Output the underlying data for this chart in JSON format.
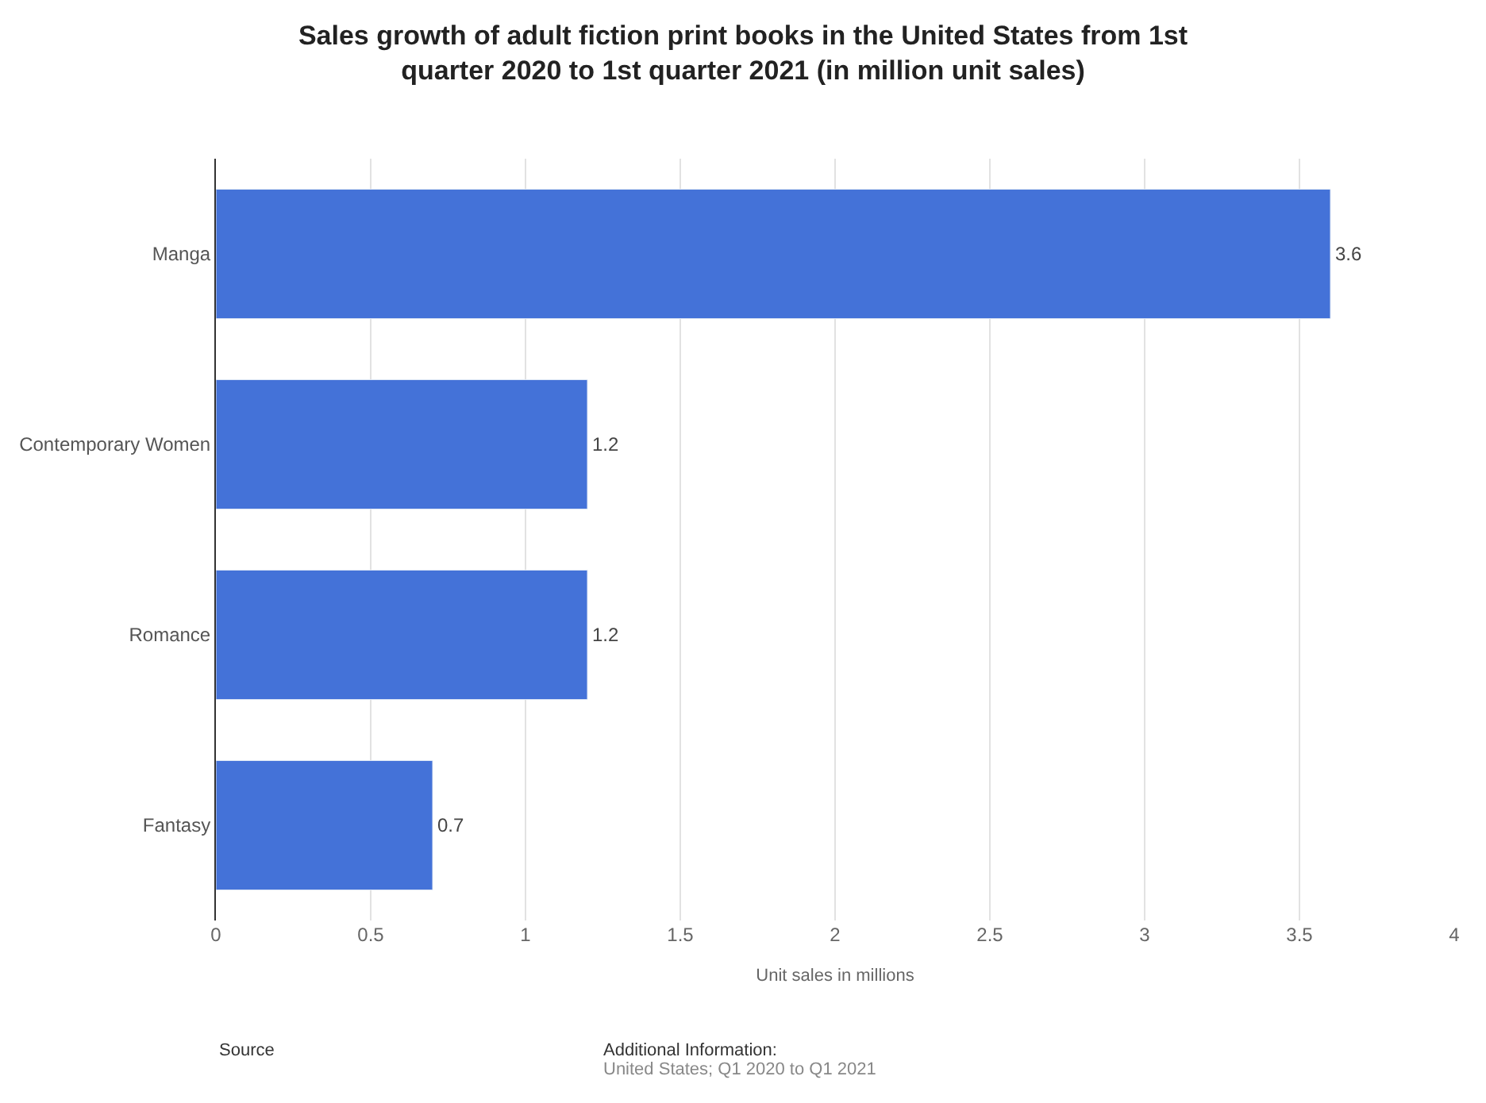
{
  "chart_data": {
    "type": "bar",
    "orientation": "horizontal",
    "title": "Sales growth of adult fiction print books in the United States from 1st quarter 2020 to 1st quarter 2021 (in million unit sales)",
    "xlabel": "Unit sales in millions",
    "categories": [
      "Manga",
      "Contemporary Women",
      "Romance",
      "Fantasy"
    ],
    "values": [
      3.6,
      1.2,
      1.2,
      0.7
    ],
    "color": "#4472d8",
    "xlim": [
      0,
      4
    ],
    "xticks": [
      0,
      0.5,
      1,
      1.5,
      2,
      2.5,
      3,
      3.5,
      4
    ],
    "grid": "x",
    "data_labels": true,
    "legend": false,
    "annotations": [
      "Source",
      "Additional Information:",
      "United States; Q1 2020 to Q1 2021"
    ]
  }
}
